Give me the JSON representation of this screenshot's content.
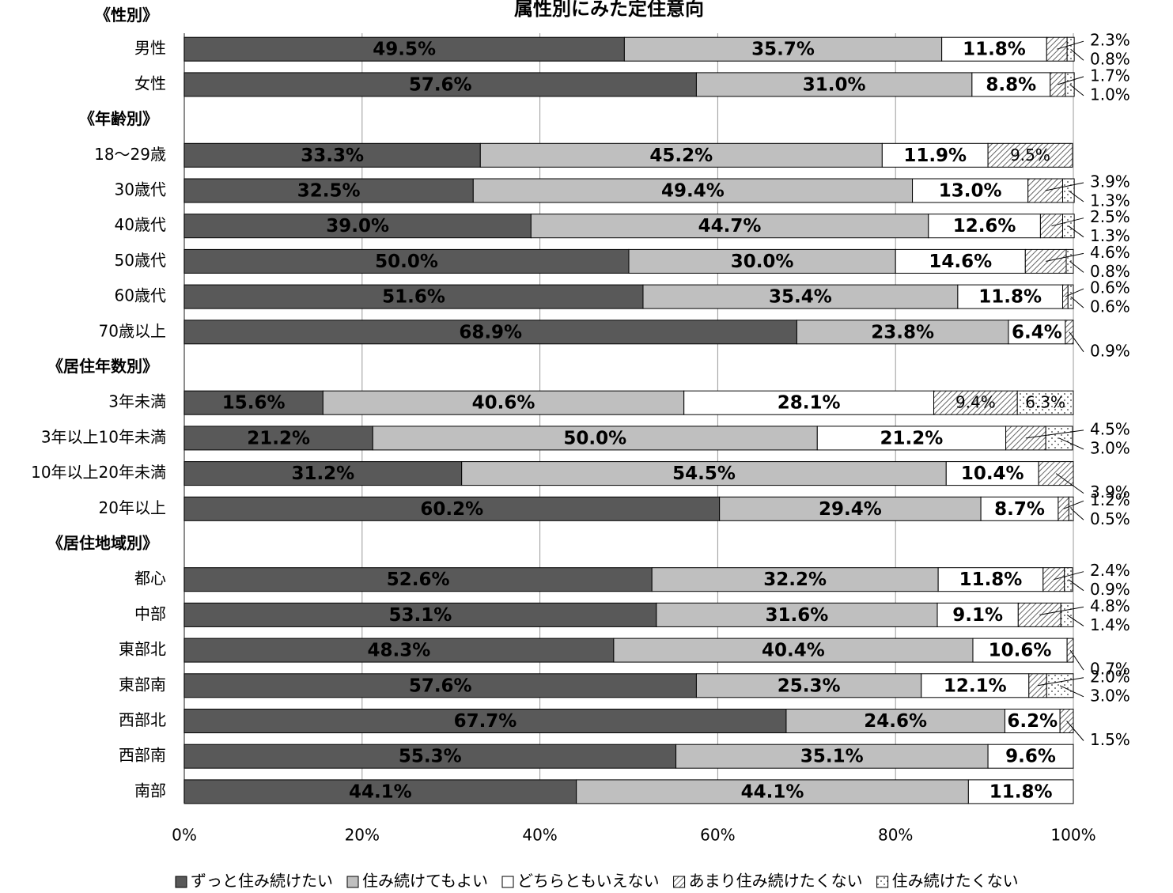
{
  "chart_data": {
    "type": "stacked_bar_horizontal",
    "title": "属性別にみた定住意向",
    "groups": [
      {
        "name": "《性別》",
        "categories": [
          "男性",
          "女性"
        ]
      },
      {
        "name": "《年齢別》",
        "categories": [
          "18～29歳",
          "30歳代",
          "40歳代",
          "50歳代",
          "60歳代",
          "70歳以上"
        ]
      },
      {
        "name": "《居住年数別》",
        "categories": [
          "3年未満",
          "3年以上10年未満",
          "10年以上20年未満",
          "20年以上"
        ]
      },
      {
        "name": "《居住地域別》",
        "categories": [
          "都心",
          "中部",
          "東部北",
          "東部南",
          "西部北",
          "西部南",
          "南部"
        ]
      }
    ],
    "series": [
      {
        "name": "ずっと住み続けたい",
        "color": "#595959",
        "values": [
          49.5,
          57.6,
          33.3,
          32.5,
          39.0,
          50.0,
          51.6,
          68.9,
          15.6,
          21.2,
          31.2,
          60.2,
          52.6,
          53.1,
          48.3,
          57.6,
          67.7,
          55.3,
          44.1
        ],
        "value_labels": [
          "49.5%",
          "57.6%",
          "33.3%",
          "32.5%",
          "39.0%",
          "50.0%",
          "51.6%",
          "68.9%",
          "15.6%",
          "21.2%",
          "31.2%",
          "60.2%",
          "52.6%",
          "53.1%",
          "48.3%",
          "57.6%",
          "67.7%",
          "55.3%",
          "44.1%"
        ]
      },
      {
        "name": "住み続けてもよい",
        "color": "#bfbfbf",
        "values": [
          35.7,
          31.0,
          45.2,
          49.4,
          44.7,
          30.0,
          35.4,
          23.8,
          40.6,
          50.0,
          54.5,
          29.4,
          32.2,
          31.6,
          40.4,
          25.3,
          24.6,
          35.1,
          44.1
        ],
        "value_labels": [
          "35.7%",
          "31.0%",
          "45.2%",
          "49.4%",
          "44.7%",
          "30.0%",
          "35.4%",
          "23.8%",
          "40.6%",
          "50.0%",
          "54.5%",
          "29.4%",
          "32.2%",
          "31.6%",
          "40.4%",
          "25.3%",
          "24.6%",
          "35.1%",
          "44.1%"
        ]
      },
      {
        "name": "どちらともいえない",
        "color": "#ffffff",
        "values": [
          11.8,
          8.8,
          11.9,
          13.0,
          12.6,
          14.6,
          11.8,
          6.4,
          28.1,
          21.2,
          10.4,
          8.7,
          11.8,
          9.1,
          10.6,
          12.1,
          6.2,
          9.6,
          11.8
        ],
        "value_labels": [
          "11.8%",
          "8.8%",
          "11.9%",
          "13.0%",
          "12.6%",
          "14.6%",
          "11.8%",
          "6.4%",
          "28.1%",
          "21.2%",
          "10.4%",
          "8.7%",
          "11.8%",
          "9.1%",
          "10.6%",
          "12.1%",
          "6.2%",
          "9.6%",
          "11.8%"
        ]
      },
      {
        "name": "あまり住み続けたくない",
        "color": "hatch",
        "values": [
          2.3,
          1.7,
          9.5,
          3.9,
          2.5,
          4.6,
          0.6,
          0.9,
          9.4,
          4.5,
          3.9,
          1.2,
          2.4,
          4.8,
          0.7,
          2.0,
          1.5,
          null,
          null
        ],
        "value_labels": [
          "2.3%",
          "1.7%",
          "9.5%",
          "3.9%",
          "2.5%",
          "4.6%",
          "0.6%",
          "0.9%",
          "9.4%",
          "4.5%",
          "3.9%",
          "1.2%",
          "2.4%",
          "4.8%",
          "0.7%",
          "2.0%",
          "1.5%",
          null,
          null
        ]
      },
      {
        "name": "住み続けたくない",
        "color": "dots",
        "values": [
          0.8,
          1.0,
          null,
          1.3,
          1.3,
          0.8,
          0.6,
          null,
          6.3,
          3.0,
          null,
          0.5,
          0.9,
          1.4,
          null,
          3.0,
          null,
          null,
          null
        ],
        "value_labels": [
          "0.8%",
          "1.0%",
          null,
          "1.3%",
          "1.3%",
          "0.8%",
          "0.6%",
          null,
          "6.3%",
          "3.0%",
          null,
          "0.5%",
          "0.9%",
          "1.4%",
          null,
          "3.0%",
          null,
          null,
          null
        ]
      }
    ],
    "xlim": [
      0,
      100
    ],
    "xticks": [
      {
        "value": 0,
        "label": "0%"
      },
      {
        "value": 20,
        "label": "20%"
      },
      {
        "value": 40,
        "label": "40%"
      },
      {
        "value": 60,
        "label": "60%"
      },
      {
        "value": 80,
        "label": "80%"
      },
      {
        "value": 100,
        "label": "100%"
      }
    ],
    "grid": true
  }
}
